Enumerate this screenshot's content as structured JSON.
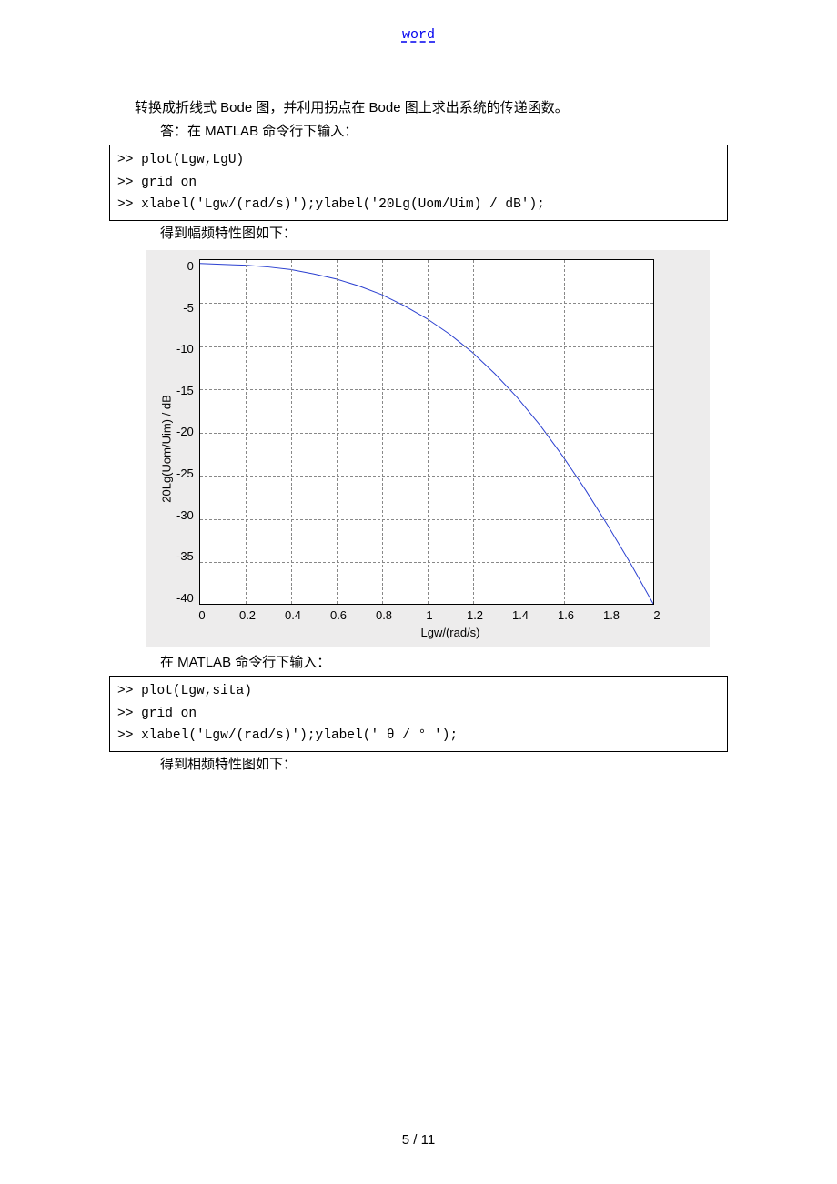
{
  "header": {
    "link_text": "word"
  },
  "intro": {
    "line1": "转换成折线式 Bode 图，并利用拐点在 Bode 图上求出系统的传递函数。",
    "line2": "答：在 MATLAB 命令行下输入："
  },
  "code1": {
    "l1": ">> plot(Lgw,LgU)",
    "l2": ">> grid on",
    "l3": ">> xlabel('Lgw/(rad/s)');ylabel('20Lg(Uom/Uim) / dB');"
  },
  "caption1": "得到幅频特性图如下：",
  "chart": {
    "type": "line",
    "xlabel": "Lgw/(rad/s)",
    "ylabel": "20Lg(Uom/Uim) / dB",
    "xlim": [
      0,
      2
    ],
    "ylim": [
      -40,
      0
    ],
    "xticks": [
      "0",
      "0.2",
      "0.4",
      "0.6",
      "0.8",
      "1",
      "1.2",
      "1.4",
      "1.6",
      "1.8",
      "2"
    ],
    "yticks": [
      "0",
      "-5",
      "-10",
      "-15",
      "-20",
      "-25",
      "-30",
      "-35",
      "-40"
    ],
    "x": [
      0,
      0.1,
      0.2,
      0.3,
      0.4,
      0.5,
      0.6,
      0.7,
      0.8,
      0.9,
      1.0,
      1.1,
      1.2,
      1.3,
      1.4,
      1.5,
      1.6,
      1.7,
      1.8,
      1.9,
      2.0
    ],
    "y": [
      -0.4,
      -0.5,
      -0.6,
      -0.8,
      -1.1,
      -1.6,
      -2.2,
      -3.0,
      -4.0,
      -5.3,
      -6.8,
      -8.6,
      -10.7,
      -13.2,
      -16.0,
      -19.2,
      -22.8,
      -26.7,
      -30.9,
      -35.3,
      -40.0
    ],
    "line_color": "#2a3fd0",
    "line_width": 1,
    "background_color": "#ffffff",
    "panel_color": "#edecec",
    "grid_color": "#888888",
    "axis_color": "#000000",
    "tick_font_family": "Arial",
    "tick_fontsize": 13,
    "label_fontsize": 13
  },
  "mid_text": "在 MATLAB 命令行下输入：",
  "code2": {
    "l1": ">> plot(Lgw,sita)",
    "l2": ">> grid on",
    "l3": ">> xlabel('Lgw/(rad/s)');ylabel(' θ / ° ');"
  },
  "caption2": "得到相频特性图如下：",
  "pagenum": "5 / 11"
}
